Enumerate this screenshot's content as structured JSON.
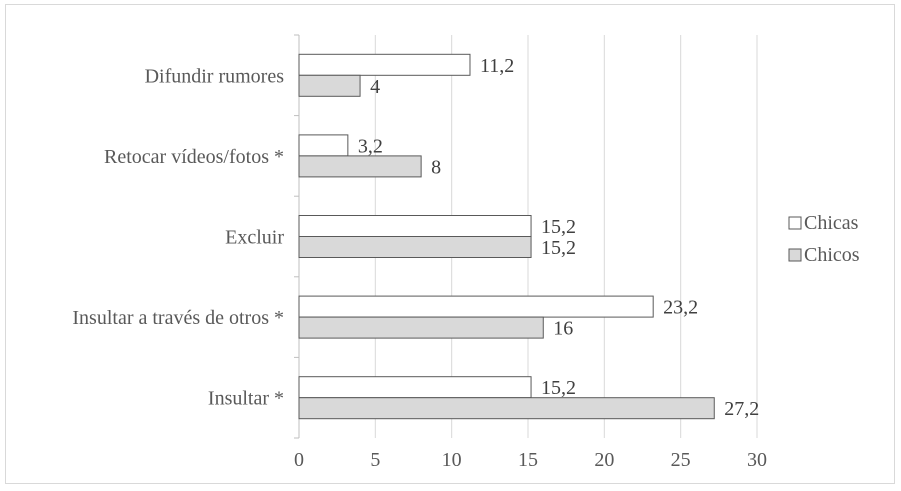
{
  "chart_data": {
    "type": "bar",
    "orientation": "horizontal",
    "categories": [
      "Difundir rumores",
      "Retocar vídeos/fotos *",
      "Excluir",
      "Insultar a través de otros *",
      "Insultar *"
    ],
    "category_order": "top-to-bottom",
    "series": [
      {
        "name": "Chicas",
        "values": [
          11.2,
          3.2,
          15.2,
          23.2,
          15.2
        ],
        "labels": [
          "11,2",
          "3,2",
          "15,2",
          "23,2",
          "15,2"
        ],
        "color": "#ffffff",
        "border": "#595959"
      },
      {
        "name": "Chicos",
        "values": [
          4,
          8,
          15.2,
          16,
          27.2
        ],
        "labels": [
          "4",
          "8",
          "15,2",
          "16",
          "27,2"
        ],
        "color": "#d9d9d9",
        "border": "#595959"
      }
    ],
    "x_ticks": [
      0,
      5,
      10,
      15,
      20,
      25,
      30
    ],
    "xlim": [
      0,
      30
    ],
    "grid": "vertical",
    "gridline_color": "#d9d9d9",
    "legend_position": "right",
    "title": "",
    "xlabel": "",
    "ylabel": ""
  }
}
